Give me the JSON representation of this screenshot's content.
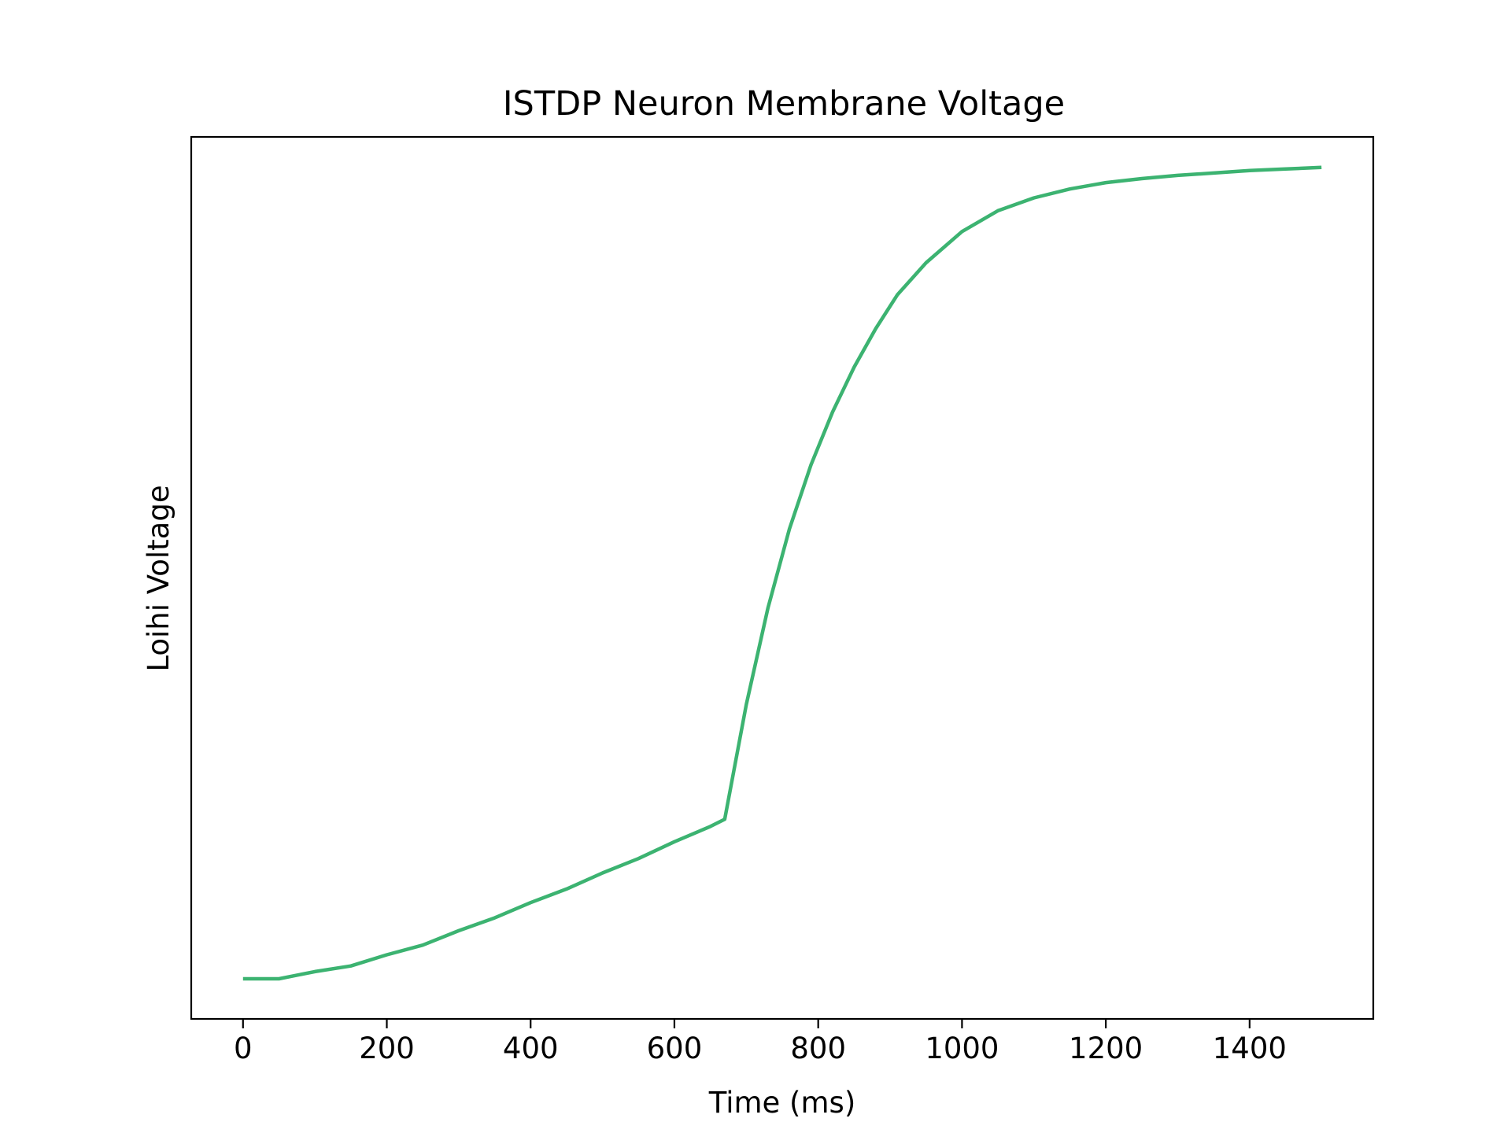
{
  "chart_data": {
    "type": "line",
    "title": "ISTDP Neuron Membrane Voltage",
    "xlabel": "Time (ms)",
    "ylabel": "Loihi Voltage",
    "xlim": [
      -72,
      1572
    ],
    "ylim": [
      -0.05,
      1.05
    ],
    "x_ticks": [
      0,
      200,
      400,
      600,
      800,
      1000,
      1200,
      1400
    ],
    "x_tick_labels": [
      "0",
      "200",
      "400",
      "600",
      "800",
      "1000",
      "1200",
      "1400"
    ],
    "y_ticks_shown": false,
    "grid": false,
    "legend": "none",
    "line_color": "#3cb371",
    "series": [
      {
        "x": [
          0,
          50,
          100,
          150,
          200,
          250,
          300,
          350,
          400,
          450,
          500,
          550,
          600,
          650,
          670,
          700,
          730,
          760,
          790,
          820,
          850,
          880,
          910,
          950,
          1000,
          1050,
          1100,
          1150,
          1200,
          1250,
          1300,
          1350,
          1400,
          1450,
          1500
        ],
        "y": [
          0.0,
          0.0,
          0.009,
          0.016,
          0.03,
          0.042,
          0.06,
          0.076,
          0.095,
          0.112,
          0.132,
          0.15,
          0.171,
          0.19,
          0.199,
          0.342,
          0.462,
          0.561,
          0.641,
          0.707,
          0.763,
          0.811,
          0.853,
          0.893,
          0.932,
          0.958,
          0.974,
          0.985,
          0.993,
          0.998,
          1.002,
          1.005,
          1.008,
          1.01,
          1.012
        ]
      }
    ]
  }
}
